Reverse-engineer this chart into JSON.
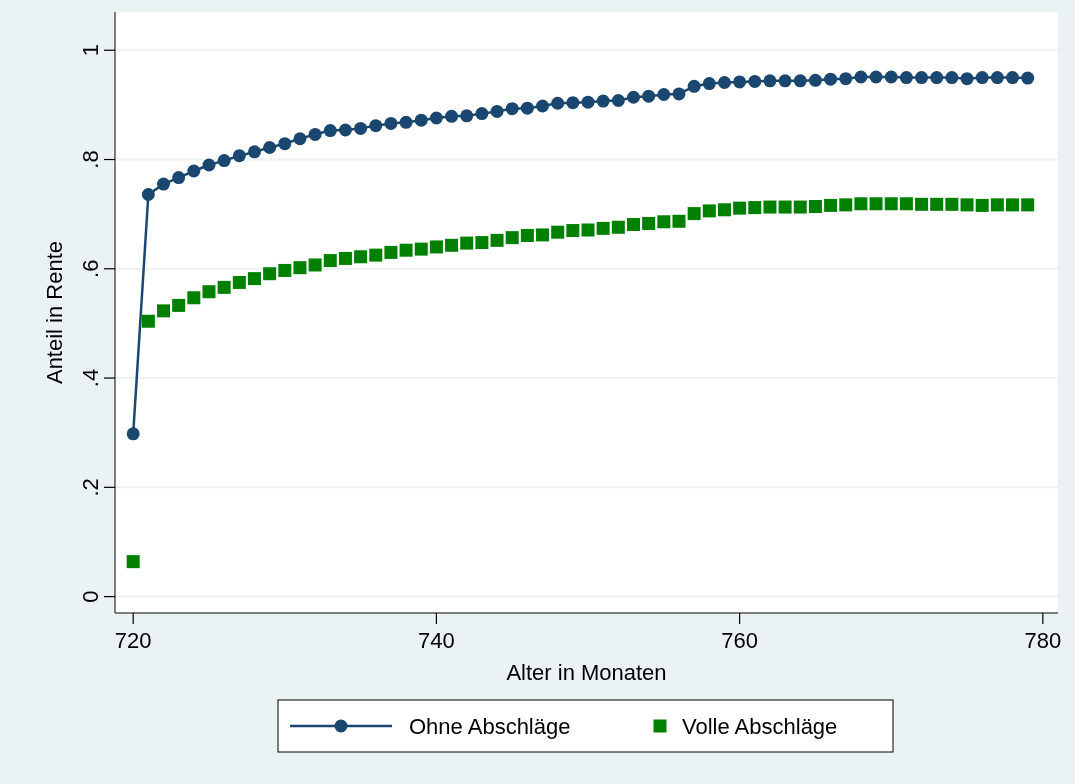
{
  "chart_data": {
    "type": "line",
    "xlabel": "Alter in Monaten",
    "ylabel": "Anteil in Rente",
    "x": [
      720,
      721,
      722,
      723,
      724,
      725,
      726,
      727,
      728,
      729,
      730,
      731,
      732,
      733,
      734,
      735,
      736,
      737,
      738,
      739,
      740,
      741,
      742,
      743,
      744,
      745,
      746,
      747,
      748,
      749,
      750,
      751,
      752,
      753,
      754,
      755,
      756,
      757,
      758,
      759,
      760,
      761,
      762,
      763,
      764,
      765,
      766,
      767,
      768,
      769,
      770,
      771,
      772,
      773,
      774,
      775,
      776,
      777,
      778,
      779
    ],
    "xlim": [
      718.8,
      781
    ],
    "xticks": [
      720,
      740,
      760,
      780
    ],
    "ylim": [
      -0.03,
      1.07
    ],
    "yticks": [
      {
        "value": 0,
        "label": "0"
      },
      {
        "value": 0.2,
        "label": ".2"
      },
      {
        "value": 0.4,
        "label": ".4"
      },
      {
        "value": 0.6,
        "label": ".6"
      },
      {
        "value": 0.8,
        "label": ".8"
      },
      {
        "value": 1,
        "label": "1"
      }
    ],
    "grid": "y",
    "legend": "bottom",
    "series": [
      {
        "name": "Ohne Abschläge",
        "marker": "circle",
        "color": "#1a476f",
        "values": [
          0.298,
          0.736,
          0.755,
          0.767,
          0.779,
          0.79,
          0.798,
          0.807,
          0.814,
          0.822,
          0.829,
          0.838,
          0.846,
          0.853,
          0.854,
          0.857,
          0.862,
          0.866,
          0.868,
          0.872,
          0.876,
          0.879,
          0.88,
          0.884,
          0.888,
          0.893,
          0.894,
          0.898,
          0.903,
          0.904,
          0.905,
          0.907,
          0.908,
          0.914,
          0.916,
          0.919,
          0.92,
          0.934,
          0.939,
          0.941,
          0.942,
          0.943,
          0.944,
          0.944,
          0.944,
          0.945,
          0.947,
          0.948,
          0.951,
          0.951,
          0.951,
          0.95,
          0.95,
          0.95,
          0.95,
          0.948,
          0.95,
          0.95,
          0.95,
          0.949
        ]
      },
      {
        "name": "Volle Abschläge",
        "type": "scatter",
        "marker": "square",
        "color": "#008000",
        "values": [
          0.064,
          0.504,
          0.523,
          0.533,
          0.547,
          0.558,
          0.566,
          0.575,
          0.582,
          0.591,
          0.597,
          0.602,
          0.607,
          0.615,
          0.619,
          0.622,
          0.625,
          0.63,
          0.634,
          0.636,
          0.64,
          0.643,
          0.647,
          0.648,
          0.652,
          0.657,
          0.661,
          0.662,
          0.667,
          0.67,
          0.671,
          0.674,
          0.676,
          0.681,
          0.683,
          0.686,
          0.687,
          0.701,
          0.706,
          0.708,
          0.711,
          0.712,
          0.713,
          0.713,
          0.713,
          0.714,
          0.716,
          0.717,
          0.719,
          0.719,
          0.719,
          0.719,
          0.718,
          0.718,
          0.718,
          0.717,
          0.716,
          0.717,
          0.717,
          0.717
        ]
      }
    ]
  }
}
